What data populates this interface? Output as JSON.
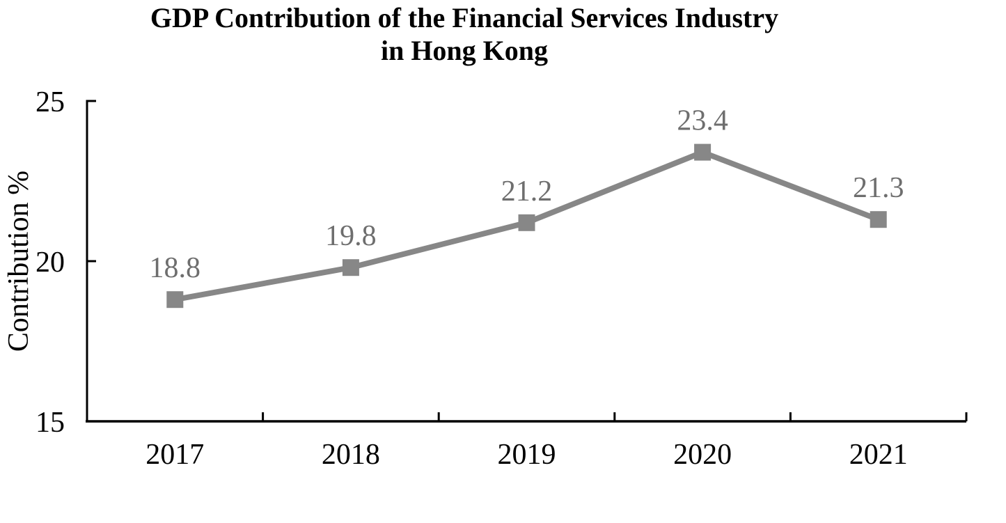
{
  "chart_data": {
    "type": "line",
    "title": "GDP Contribution of the Financial Services Industry in Hong Kong",
    "title_lines": [
      "GDP Contribution of the Financial Services Industry",
      "in Hong Kong"
    ],
    "categories": [
      "2017",
      "2018",
      "2019",
      "2020",
      "2021"
    ],
    "values": [
      18.8,
      19.8,
      21.2,
      23.4,
      21.3
    ],
    "data_labels": [
      "18.8",
      "19.8",
      "21.2",
      "23.4",
      "21.3"
    ],
    "xlabel": "",
    "ylabel": "Contribution %",
    "ylim": [
      15,
      25
    ],
    "yticks": [
      15,
      20,
      25
    ],
    "ytick_labels": [
      "15",
      "20",
      "25"
    ],
    "grid": false,
    "legend_position": "none",
    "marker_shape": "square",
    "colors": {
      "line": "#878787",
      "marker": "#878787",
      "data_label": "#6e6e6e",
      "axis": "#000000",
      "tick_label": "#000000",
      "title": "#000000",
      "background": "#ffffff"
    }
  }
}
